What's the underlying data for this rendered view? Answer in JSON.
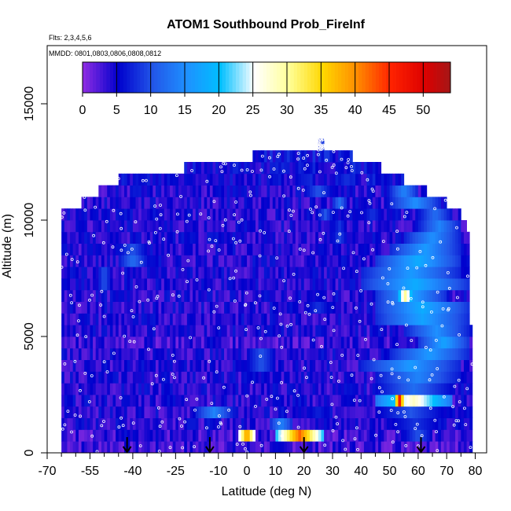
{
  "chart_data": {
    "type": "heatmap",
    "title": "ATOM1 Southbound Prob_FireInf",
    "subtitle_flights": "Flts: 2,3,4,5,6",
    "subtitle_dates": "MMDD: 0801,0803,0806,0808,0812",
    "xlabel": "Latitude (deg N)",
    "ylabel": "Altitude (m)",
    "xlim": [
      -70,
      84
    ],
    "ylim": [
      0,
      17500
    ],
    "x_ticks": [
      -70,
      -55,
      -40,
      -25,
      -10,
      0,
      10,
      20,
      30,
      40,
      50,
      60,
      70,
      80
    ],
    "x_minor_ticks": [
      -65,
      -60,
      -50,
      -45,
      -35,
      -30,
      -20,
      -15,
      -5,
      5,
      15,
      25,
      35,
      45,
      55,
      65,
      75
    ],
    "y_ticks": [
      0,
      5000,
      10000,
      15000
    ],
    "colorbar": {
      "min": 0,
      "max": 54,
      "ticks": [
        0,
        5,
        10,
        15,
        20,
        25,
        30,
        35,
        40,
        45,
        50
      ],
      "stops": [
        {
          "v": 0,
          "color": "#8a2be2"
        },
        {
          "v": 5,
          "color": "#0000cd"
        },
        {
          "v": 10,
          "color": "#2255e8"
        },
        {
          "v": 15,
          "color": "#1e90ff"
        },
        {
          "v": 20,
          "color": "#00bfff"
        },
        {
          "v": 25,
          "color": "#ffffff"
        },
        {
          "v": 30,
          "color": "#ffff99"
        },
        {
          "v": 35,
          "color": "#ffd700"
        },
        {
          "v": 40,
          "color": "#ff8c00"
        },
        {
          "v": 45,
          "color": "#ff2200"
        },
        {
          "v": 50,
          "color": "#dd0000"
        },
        {
          "v": 54,
          "color": "#a01818"
        }
      ]
    },
    "profile_arrows_lat": [
      -42,
      -13,
      20,
      61
    ],
    "altitude_bands": [
      {
        "alt": [
          0,
          500
        ],
        "lat": [
          -65,
          79
        ],
        "base": 2,
        "hot": [
          [
            -5,
            0,
            3
          ],
          [
            20,
            22,
            3
          ]
        ]
      },
      {
        "alt": [
          500,
          1000
        ],
        "lat": [
          -65,
          79
        ],
        "base": 2,
        "hot": [
          [
            -45,
            -40,
            6
          ],
          [
            -3,
            3,
            40
          ],
          [
            10,
            27,
            42
          ],
          [
            55,
            65,
            10
          ]
        ]
      },
      {
        "alt": [
          1000,
          1500
        ],
        "lat": [
          -65,
          79
        ],
        "base": 3,
        "hot": [
          [
            -22,
            -18,
            7
          ],
          [
            8,
            16,
            14
          ],
          [
            48,
            70,
            8
          ]
        ]
      },
      {
        "alt": [
          1500,
          2000
        ],
        "lat": [
          -65,
          79
        ],
        "base": 3,
        "hot": [
          [
            -18,
            -5,
            14
          ],
          [
            20,
            30,
            7
          ],
          [
            45,
            70,
            10
          ]
        ]
      },
      {
        "alt": [
          2000,
          2500
        ],
        "lat": [
          -65,
          79
        ],
        "base": 3,
        "hot": [
          [
            -30,
            -25,
            6
          ],
          [
            45,
            72,
            28
          ],
          [
            52,
            55,
            46
          ],
          [
            62,
            68,
            20
          ]
        ]
      },
      {
        "alt": [
          2500,
          3000
        ],
        "lat": [
          -65,
          79
        ],
        "base": 3,
        "hot": [
          [
            -10,
            -5,
            5
          ],
          [
            45,
            72,
            12
          ]
        ]
      },
      {
        "alt": [
          3000,
          3500
        ],
        "lat": [
          -65,
          79
        ],
        "base": 3,
        "hot": [
          [
            0,
            5,
            6
          ],
          [
            45,
            75,
            14
          ]
        ]
      },
      {
        "alt": [
          3500,
          4000
        ],
        "lat": [
          -65,
          79
        ],
        "base": 3,
        "hot": [
          [
            0,
            10,
            10
          ],
          [
            40,
            75,
            16
          ]
        ]
      },
      {
        "alt": [
          4000,
          4500
        ],
        "lat": [
          -65,
          79
        ],
        "base": 3,
        "hot": [
          [
            0,
            10,
            10
          ],
          [
            50,
            78,
            16
          ]
        ]
      },
      {
        "alt": [
          4500,
          5000
        ],
        "lat": [
          -65,
          79
        ],
        "base": 2,
        "hot": [
          [
            -15,
            -10,
            6
          ],
          [
            60,
            78,
            17
          ]
        ]
      },
      {
        "alt": [
          5000,
          5500
        ],
        "lat": [
          -65,
          79
        ],
        "base": 3,
        "hot": [
          [
            55,
            78,
            15
          ]
        ]
      },
      {
        "alt": [
          5500,
          6000
        ],
        "lat": [
          -65,
          78
        ],
        "base": 3,
        "hot": [
          [
            45,
            78,
            17
          ]
        ]
      },
      {
        "alt": [
          6000,
          6500
        ],
        "lat": [
          -65,
          78
        ],
        "base": 3,
        "hot": [
          [
            20,
            30,
            8
          ],
          [
            45,
            78,
            18
          ]
        ]
      },
      {
        "alt": [
          6500,
          7000
        ],
        "lat": [
          -65,
          78
        ],
        "base": 3,
        "hot": [
          [
            45,
            70,
            17
          ],
          [
            53,
            58,
            30
          ]
        ]
      },
      {
        "alt": [
          7000,
          7500
        ],
        "lat": [
          -65,
          78
        ],
        "base": 3,
        "hot": [
          [
            -52,
            -48,
            10
          ],
          [
            40,
            78,
            18
          ]
        ]
      },
      {
        "alt": [
          7500,
          8000
        ],
        "lat": [
          -65,
          78
        ],
        "base": 3,
        "hot": [
          [
            -52,
            -48,
            10
          ],
          [
            40,
            75,
            16
          ]
        ]
      },
      {
        "alt": [
          8000,
          8500
        ],
        "lat": [
          -65,
          78
        ],
        "base": 3,
        "hot": [
          [
            -45,
            -35,
            12
          ],
          [
            45,
            75,
            18
          ]
        ]
      },
      {
        "alt": [
          8500,
          9000
        ],
        "lat": [
          -65,
          78
        ],
        "base": 3,
        "hot": [
          [
            -45,
            -35,
            10
          ],
          [
            50,
            75,
            16
          ]
        ]
      },
      {
        "alt": [
          9000,
          9500
        ],
        "lat": [
          -65,
          78
        ],
        "base": 3,
        "hot": [
          [
            30,
            35,
            9
          ],
          [
            55,
            75,
            15
          ]
        ]
      },
      {
        "alt": [
          9500,
          10000
        ],
        "lat": [
          -65,
          77
        ],
        "base": 3,
        "hot": [
          [
            30,
            35,
            8
          ],
          [
            60,
            75,
            14
          ]
        ]
      },
      {
        "alt": [
          10000,
          10500
        ],
        "lat": [
          -65,
          75
        ],
        "base": 3,
        "hot": [
          [
            25,
            30,
            10
          ],
          [
            40,
            48,
            8
          ],
          [
            60,
            72,
            12
          ]
        ]
      },
      {
        "alt": [
          10500,
          11000
        ],
        "lat": [
          -58,
          70
        ],
        "base": 3,
        "hot": [
          [
            30,
            35,
            12
          ],
          [
            50,
            68,
            15
          ]
        ]
      },
      {
        "alt": [
          11000,
          11500
        ],
        "lat": [
          -52,
          63
        ],
        "base": 3,
        "hot": [
          [
            20,
            30,
            10
          ],
          [
            50,
            60,
            14
          ]
        ]
      },
      {
        "alt": [
          11500,
          12000
        ],
        "lat": [
          -45,
          55
        ],
        "base": 4,
        "hot": [
          [
            30,
            40,
            8
          ]
        ]
      },
      {
        "alt": [
          12000,
          12500
        ],
        "lat": [
          -22,
          47
        ],
        "base": 4,
        "hot": [
          [
            35,
            40,
            8
          ]
        ]
      },
      {
        "alt": [
          12500,
          13000
        ],
        "lat": [
          2,
          37
        ],
        "base": 5,
        "hot": []
      },
      {
        "alt": [
          13000,
          13500
        ],
        "lat": [
          25,
          27
        ],
        "base": 6,
        "hot": []
      }
    ]
  }
}
